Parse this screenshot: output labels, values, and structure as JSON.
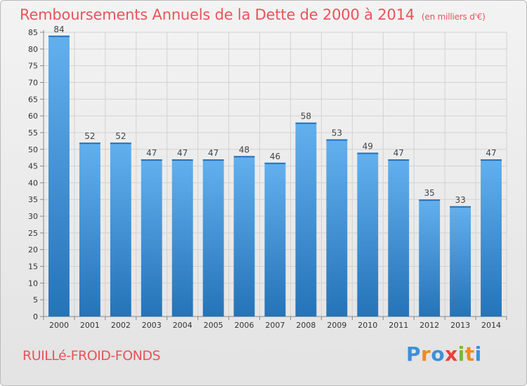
{
  "header": {
    "title": "Remboursements Annuels de la Dette de 2000 à 2014",
    "unit": "(en milliers d'€)"
  },
  "footer": {
    "commune": "RUILLé-FROID-FONDS",
    "logo": "Proxiti",
    "logo_colors": [
      "#3f8fd8",
      "#f08a1c",
      "#3f8fd8",
      "#e8403a",
      "#7ab83a",
      "#f08a1c",
      "#3f8fd8"
    ]
  },
  "chart_data": {
    "type": "bar",
    "title": "Remboursements Annuels de la Dette de 2000 à 2014",
    "subtitle": "(en milliers d'€)",
    "categories": [
      "2000",
      "2001",
      "2002",
      "2003",
      "2004",
      "2005",
      "2006",
      "2007",
      "2008",
      "2009",
      "2010",
      "2011",
      "2012",
      "2013",
      "2014"
    ],
    "values": [
      84,
      52,
      52,
      47,
      47,
      47,
      48,
      46,
      58,
      53,
      49,
      47,
      35,
      33,
      47
    ],
    "ylim": [
      0,
      85
    ],
    "yticks": [
      0,
      5,
      10,
      15,
      20,
      25,
      30,
      35,
      40,
      45,
      50,
      55,
      60,
      65,
      70,
      75,
      80,
      85
    ],
    "grid": true,
    "bar_color": "#3a91dc",
    "bar_color_light": "#62b0ee",
    "bar_color_dark": "#2573b8"
  }
}
